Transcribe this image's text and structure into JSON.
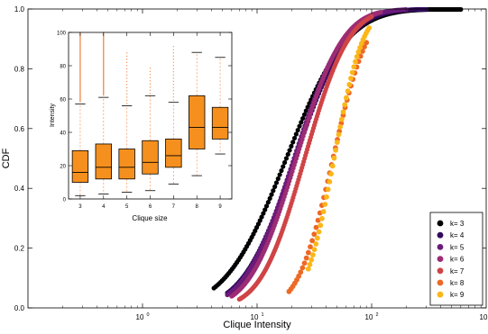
{
  "chart_data": [
    {
      "type": "scatter",
      "title": "",
      "xlabel": "Clique Intensity",
      "ylabel": "CDF",
      "xscale": "log",
      "xlim": [
        0.1,
        1000
      ],
      "ylim": [
        0,
        1
      ],
      "xticks": [
        {
          "value": 1,
          "base": "10",
          "exp": "0"
        },
        {
          "value": 10,
          "base": "10",
          "exp": "1"
        },
        {
          "value": 100,
          "base": "10",
          "exp": "2"
        }
      ],
      "xtick_edge_label": "10",
      "yticks": [
        {
          "value": 0,
          "label": "0.0"
        },
        {
          "value": 0.2,
          "label": "0.2"
        },
        {
          "value": 0.4,
          "label": "0.4"
        },
        {
          "value": 0.6,
          "label": "0.6"
        },
        {
          "value": 0.8,
          "label": "0.8"
        },
        {
          "value": 1.0,
          "label": "1.0"
        }
      ],
      "grid": false,
      "legend_position": "bottom-right",
      "series": [
        {
          "name": "k= 3",
          "color": "#000004",
          "median": 18,
          "spread": 0.42,
          "x_min": 4.2,
          "x_max": 600
        },
        {
          "name": "k= 4",
          "color": "#320a5e",
          "median": 21.5,
          "spread": 0.36,
          "x_min": 5.5,
          "x_max": 300
        },
        {
          "name": "k= 5",
          "color": "#6a1b79",
          "median": 21,
          "spread": 0.34,
          "x_min": 5.5,
          "x_max": 200
        },
        {
          "name": "k= 6",
          "color": "#9c2c74",
          "median": 22,
          "spread": 0.32,
          "x_min": 6,
          "x_max": 120
        },
        {
          "name": "k= 7",
          "color": "#cf4446",
          "median": 26,
          "spread": 0.3,
          "x_min": 7,
          "x_max": 100
        },
        {
          "name": "k= 8",
          "color": "#ed6925",
          "median": 46,
          "spread": 0.24,
          "x_min": 19,
          "x_max": 90
        },
        {
          "name": "k= 9",
          "color": "#fbb61a",
          "median": 47,
          "spread": 0.2,
          "x_min": 28,
          "x_max": 95
        }
      ]
    },
    {
      "type": "box",
      "title": "",
      "xlabel": "Clique size",
      "ylabel": "Intensity",
      "ylim": [
        0,
        100
      ],
      "yticks": [
        {
          "value": 0,
          "label": "0"
        },
        {
          "value": 20,
          "label": "20"
        },
        {
          "value": 40,
          "label": "40"
        },
        {
          "value": 60,
          "label": "60"
        },
        {
          "value": 80,
          "label": "80"
        },
        {
          "value": 100,
          "label": "100"
        }
      ],
      "box_color": "#f5901e",
      "categories": [
        "3",
        "4",
        "5",
        "6",
        "7",
        "8",
        "9"
      ],
      "boxes": [
        {
          "q1": 10,
          "median": 16,
          "q3": 29,
          "whisker_low": 2,
          "whisker_high": 57,
          "outlier_top": 100
        },
        {
          "q1": 12,
          "median": 19,
          "q3": 33,
          "whisker_low": 3,
          "whisker_high": 61,
          "outlier_top": 100
        },
        {
          "q1": 12,
          "median": 19,
          "q3": 30,
          "whisker_low": 4,
          "whisker_high": 56,
          "outlier_top": 88
        },
        {
          "q1": 15,
          "median": 22,
          "q3": 35,
          "whisker_low": 5,
          "whisker_high": 62,
          "outlier_top": 80
        },
        {
          "q1": 19,
          "median": 26,
          "q3": 36,
          "whisker_low": 9,
          "whisker_high": 58,
          "outlier_top": 92
        },
        {
          "q1": 30,
          "median": 43,
          "q3": 62,
          "whisker_low": 14,
          "whisker_high": 88,
          "outlier_top": null
        },
        {
          "q1": 36,
          "median": 43,
          "q3": 55,
          "whisker_low": 27,
          "whisker_high": 85,
          "outlier_top": null
        }
      ]
    }
  ]
}
